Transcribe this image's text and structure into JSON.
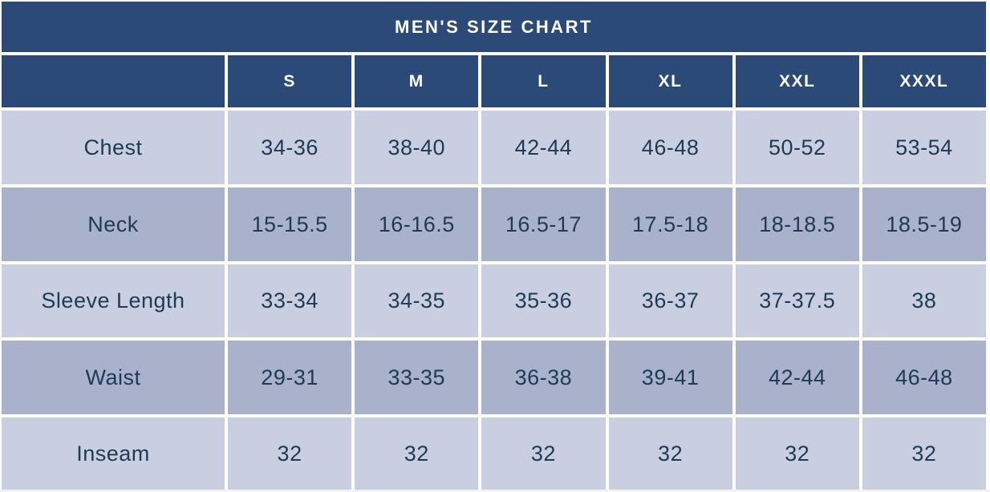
{
  "chart_data": {
    "type": "table",
    "title": "MEN'S SIZE CHART",
    "corner_label": "",
    "columns": [
      "S",
      "M",
      "L",
      "XL",
      "XXL",
      "XXXL"
    ],
    "rows": [
      {
        "label": "Chest",
        "values": [
          "34-36",
          "38-40",
          "42-44",
          "46-48",
          "50-52",
          "53-54"
        ]
      },
      {
        "label": "Neck",
        "values": [
          "15-15.5",
          "16-16.5",
          "16.5-17",
          "17.5-18",
          "18-18.5",
          "18.5-19"
        ]
      },
      {
        "label": "Sleeve Length",
        "values": [
          "33-34",
          "34-35",
          "35-36",
          "36-37",
          "37-37.5",
          "38"
        ]
      },
      {
        "label": "Waist",
        "values": [
          "29-31",
          "33-35",
          "36-38",
          "39-41",
          "42-44",
          "46-48"
        ]
      },
      {
        "label": "Inseam",
        "values": [
          "32",
          "32",
          "32",
          "32",
          "32",
          "32"
        ]
      }
    ],
    "layout_hints": {
      "row_striping": [
        "light",
        "dark",
        "light",
        "dark",
        "light"
      ],
      "gridlines": "white-gutters"
    }
  },
  "colors": {
    "header_bg": "#2b4a77",
    "row_light_bg": "#c9cfe0",
    "row_dark_bg": "#a9b1cb",
    "cell_text": "#1e3a55",
    "header_text": "#ffffff",
    "gutter": "#ffffff",
    "bottom_sliver": "#f5f3ee"
  }
}
